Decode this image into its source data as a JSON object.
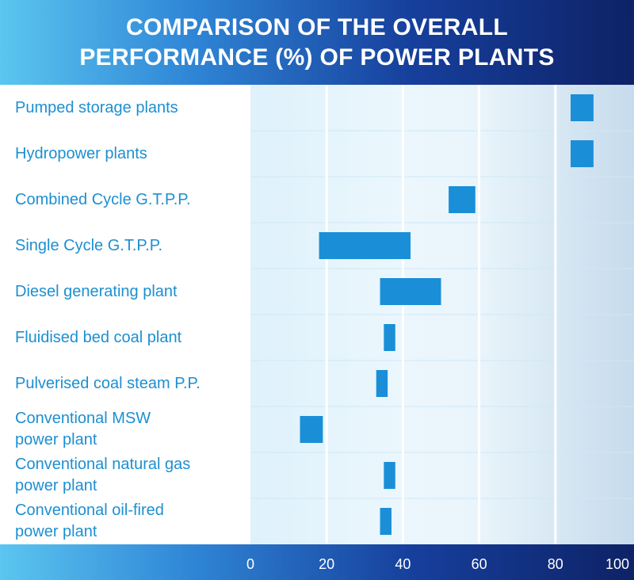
{
  "header": {
    "title_line1": "COMPARISON OF THE OVERALL",
    "title_line2": "PERFORMANCE (%) OF POWER PLANTS"
  },
  "colors": {
    "bar": "#1a8fd7",
    "label_text": "#1d8fd1",
    "grid_major": "#ffffff",
    "row_divider": "#cfe8f6"
  },
  "chart_data": {
    "type": "bar",
    "orientation": "horizontal-range",
    "title": "COMPARISON OF THE OVERALL PERFORMANCE (%) OF POWER PLANTS",
    "xlabel": "",
    "ylabel": "",
    "xlim": [
      0,
      100
    ],
    "x_ticks": [
      0,
      20,
      40,
      60,
      80,
      100
    ],
    "grid": true,
    "categories": [
      {
        "label": [
          "Pumped storage plants"
        ],
        "min": 84,
        "max": 90
      },
      {
        "label": [
          "Hydropower plants"
        ],
        "min": 84,
        "max": 90
      },
      {
        "label": [
          "Combined Cycle G.T.P.P."
        ],
        "min": 52,
        "max": 59
      },
      {
        "label": [
          "Single Cycle G.T.P.P."
        ],
        "min": 18,
        "max": 42
      },
      {
        "label": [
          "Diesel generating plant"
        ],
        "min": 34,
        "max": 50
      },
      {
        "label": [
          "Fluidised bed coal plant"
        ],
        "min": 35,
        "max": 38
      },
      {
        "label": [
          "Pulverised coal steam P.P."
        ],
        "min": 33,
        "max": 36
      },
      {
        "label": [
          "Conventional MSW",
          "power plant"
        ],
        "min": 13,
        "max": 19
      },
      {
        "label": [
          "Conventional natural gas",
          "power plant"
        ],
        "min": 35,
        "max": 38
      },
      {
        "label": [
          "Conventional oil-fired",
          "power plant"
        ],
        "min": 34,
        "max": 37
      }
    ]
  }
}
